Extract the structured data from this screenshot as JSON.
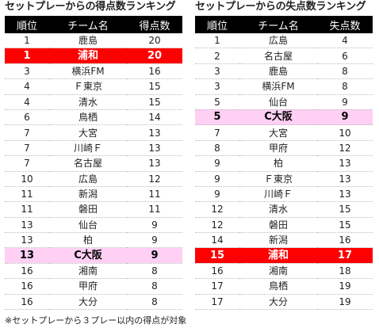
{
  "colors": {
    "header_bg": "#000000",
    "highlight_red": "#ff0000",
    "highlight_pink": "#ffd0f4"
  },
  "left": {
    "title": "セットプレーからの得点数ランキング",
    "headers": [
      "順位",
      "チーム名",
      "得点数"
    ],
    "rows": [
      {
        "rank": "1",
        "team": "鹿島",
        "value": "20",
        "highlight": ""
      },
      {
        "rank": "1",
        "team": "浦和",
        "value": "20",
        "highlight": "red"
      },
      {
        "rank": "3",
        "team": "横浜FM",
        "value": "16",
        "highlight": ""
      },
      {
        "rank": "4",
        "team": "Ｆ東京",
        "value": "15",
        "highlight": ""
      },
      {
        "rank": "4",
        "team": "清水",
        "value": "15",
        "highlight": ""
      },
      {
        "rank": "6",
        "team": "鳥栖",
        "value": "14",
        "highlight": ""
      },
      {
        "rank": "7",
        "team": "大宮",
        "value": "13",
        "highlight": ""
      },
      {
        "rank": "7",
        "team": "川崎Ｆ",
        "value": "13",
        "highlight": ""
      },
      {
        "rank": "7",
        "team": "名古屋",
        "value": "13",
        "highlight": ""
      },
      {
        "rank": "10",
        "team": "広島",
        "value": "12",
        "highlight": ""
      },
      {
        "rank": "11",
        "team": "新潟",
        "value": "11",
        "highlight": ""
      },
      {
        "rank": "11",
        "team": "磐田",
        "value": "11",
        "highlight": ""
      },
      {
        "rank": "13",
        "team": "仙台",
        "value": "9",
        "highlight": ""
      },
      {
        "rank": "13",
        "team": "柏",
        "value": "9",
        "highlight": ""
      },
      {
        "rank": "13",
        "team": "C大阪",
        "value": "9",
        "highlight": "pink"
      },
      {
        "rank": "16",
        "team": "湘南",
        "value": "8",
        "highlight": ""
      },
      {
        "rank": "16",
        "team": "甲府",
        "value": "8",
        "highlight": ""
      },
      {
        "rank": "16",
        "team": "大分",
        "value": "8",
        "highlight": ""
      }
    ]
  },
  "right": {
    "title": "セットプレーからの失点数ランキング",
    "headers": [
      "順位",
      "チーム名",
      "失点数"
    ],
    "rows": [
      {
        "rank": "1",
        "team": "広島",
        "value": "4",
        "highlight": ""
      },
      {
        "rank": "2",
        "team": "名古屋",
        "value": "6",
        "highlight": ""
      },
      {
        "rank": "3",
        "team": "鹿島",
        "value": "8",
        "highlight": ""
      },
      {
        "rank": "3",
        "team": "横浜FM",
        "value": "8",
        "highlight": ""
      },
      {
        "rank": "5",
        "team": "仙台",
        "value": "9",
        "highlight": ""
      },
      {
        "rank": "5",
        "team": "C大阪",
        "value": "9",
        "highlight": "pink"
      },
      {
        "rank": "7",
        "team": "大宮",
        "value": "10",
        "highlight": ""
      },
      {
        "rank": "8",
        "team": "甲府",
        "value": "12",
        "highlight": ""
      },
      {
        "rank": "9",
        "team": "柏",
        "value": "13",
        "highlight": ""
      },
      {
        "rank": "9",
        "team": "Ｆ東京",
        "value": "13",
        "highlight": ""
      },
      {
        "rank": "9",
        "team": "川崎Ｆ",
        "value": "13",
        "highlight": ""
      },
      {
        "rank": "12",
        "team": "清水",
        "value": "15",
        "highlight": ""
      },
      {
        "rank": "12",
        "team": "磐田",
        "value": "15",
        "highlight": ""
      },
      {
        "rank": "14",
        "team": "新潟",
        "value": "16",
        "highlight": ""
      },
      {
        "rank": "15",
        "team": "浦和",
        "value": "17",
        "highlight": "red"
      },
      {
        "rank": "16",
        "team": "湘南",
        "value": "18",
        "highlight": ""
      },
      {
        "rank": "17",
        "team": "鳥栖",
        "value": "19",
        "highlight": ""
      },
      {
        "rank": "17",
        "team": "大分",
        "value": "19",
        "highlight": ""
      }
    ]
  },
  "note": "※セットプレーから３プレー以内の得点が対象"
}
